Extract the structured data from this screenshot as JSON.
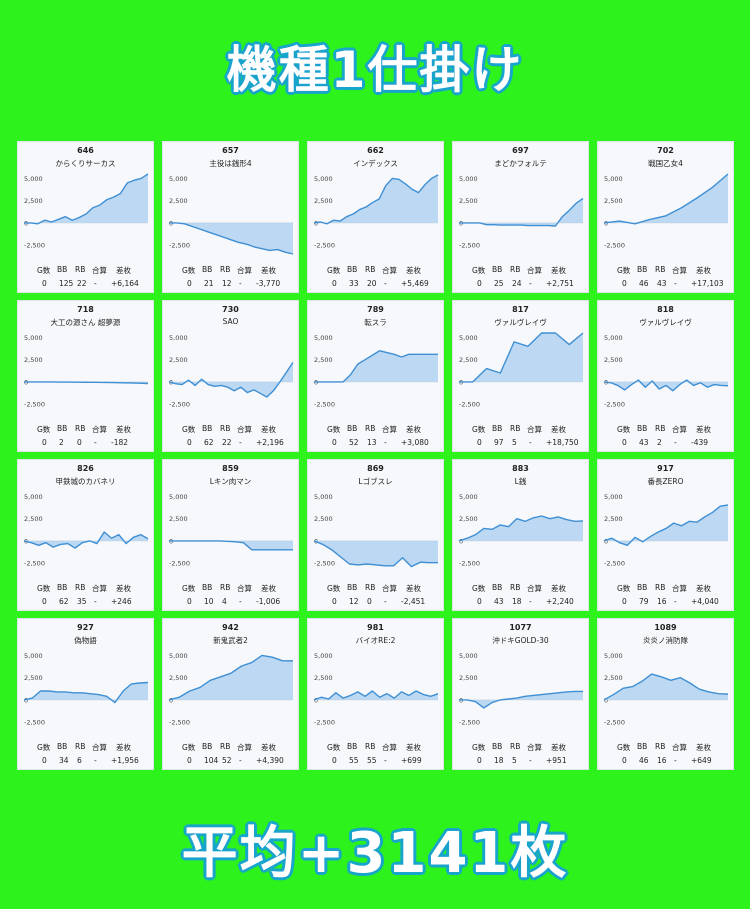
{
  "title": "機種1仕掛け",
  "footer": "平均+3141枚",
  "colors": {
    "background": "#2ef21c",
    "banner_text": "#ffffff",
    "banner_outline": "#17a9c8",
    "line": "#3f8fd4",
    "fill": "#a8cdef"
  },
  "stat_headers": [
    "G数",
    "BB",
    "RB",
    "合算",
    "差枚"
  ],
  "y_ticks": [
    "5,000",
    "2,500",
    "0",
    "-2,500"
  ],
  "chart_data": [
    {
      "type": "area",
      "number": "646",
      "name": "からくりサーカス",
      "ylim": [
        -3500,
        5500
      ],
      "y_ticks": [
        5000,
        2500,
        0,
        -2500
      ],
      "values": [
        0,
        0,
        -100,
        300,
        100,
        400,
        700,
        300,
        600,
        1000,
        1700,
        2000,
        2600,
        2900,
        3300,
        4500,
        4800,
        5000,
        5500
      ],
      "stats": {
        "games": "0",
        "bb": "125",
        "rb": "22",
        "combined": "-",
        "diff": "+6,164"
      }
    },
    {
      "type": "area",
      "number": "657",
      "name": "主役は銭形4",
      "ylim": [
        -3500,
        5500
      ],
      "y_ticks": [
        5000,
        2500,
        0,
        -2500
      ],
      "values": [
        0,
        0,
        -100,
        -400,
        -700,
        -1000,
        -1300,
        -1600,
        -1900,
        -2200,
        -2400,
        -2700,
        -2900,
        -3100,
        -3000,
        -3300,
        -3600
      ],
      "stats": {
        "games": "0",
        "bb": "21",
        "rb": "12",
        "combined": "-",
        "diff": "-3,770"
      }
    },
    {
      "type": "area",
      "number": "662",
      "name": "インデックス",
      "ylim": [
        -3500,
        5500
      ],
      "y_ticks": [
        5000,
        2500,
        0,
        -2500
      ],
      "values": [
        0,
        100,
        -100,
        300,
        200,
        700,
        1000,
        1500,
        1800,
        2300,
        2700,
        4200,
        5000,
        4900,
        4400,
        3800,
        3400,
        4300,
        5000,
        5400
      ],
      "stats": {
        "games": "0",
        "bb": "33",
        "rb": "20",
        "combined": "-",
        "diff": "+5,469"
      }
    },
    {
      "type": "area",
      "number": "697",
      "name": "まどかフォルテ",
      "ylim": [
        -3500,
        5500
      ],
      "y_ticks": [
        5000,
        2500,
        0,
        -2500
      ],
      "values": [
        0,
        0,
        0,
        0,
        -200,
        -200,
        -250,
        -250,
        -250,
        -250,
        -300,
        -300,
        -300,
        -300,
        -350,
        700,
        1400,
        2200,
        2750
      ],
      "stats": {
        "games": "0",
        "bb": "25",
        "rb": "24",
        "combined": "-",
        "diff": "+2,751"
      }
    },
    {
      "type": "area",
      "number": "702",
      "name": "戦国乙女4",
      "ylim": [
        -3500,
        5500
      ],
      "y_ticks": [
        5000,
        2500,
        0,
        -2500
      ],
      "values": [
        0,
        200,
        -100,
        400,
        800,
        1700,
        2800,
        4000,
        5500
      ],
      "stats": {
        "games": "0",
        "bb": "46",
        "rb": "43",
        "combined": "-",
        "diff": "+17,103"
      }
    },
    {
      "type": "area",
      "number": "718",
      "name": "大工の源さん 超夢源",
      "ylim": [
        -3500,
        5500
      ],
      "y_ticks": [
        5000,
        2500,
        0,
        -2500
      ],
      "values": [
        0,
        0,
        0,
        0,
        -20,
        -20,
        -30,
        -40,
        -50,
        -60,
        -80,
        -100,
        -120,
        -150,
        -182
      ],
      "stats": {
        "games": "0",
        "bb": "2",
        "rb": "0",
        "combined": "-",
        "diff": "-182"
      }
    },
    {
      "type": "area",
      "number": "730",
      "name": "SAO",
      "ylim": [
        -3500,
        5500
      ],
      "y_ticks": [
        5000,
        2500,
        0,
        -2500
      ],
      "values": [
        0,
        -200,
        -300,
        200,
        -400,
        300,
        -300,
        -500,
        -400,
        -600,
        -1000,
        -600,
        -1200,
        -900,
        -1300,
        -1700,
        -1000,
        0,
        1100,
        2196
      ],
      "stats": {
        "games": "0",
        "bb": "62",
        "rb": "22",
        "combined": "-",
        "diff": "+2,196"
      }
    },
    {
      "type": "area",
      "number": "789",
      "name": "転スラ",
      "ylim": [
        -3500,
        5500
      ],
      "y_ticks": [
        5000,
        2500,
        0,
        -2500
      ],
      "values": [
        0,
        0,
        0,
        0,
        0,
        800,
        2000,
        2500,
        3000,
        3500,
        3300,
        3100,
        2800,
        3100,
        3100,
        3100,
        3100,
        3100
      ],
      "stats": {
        "games": "0",
        "bb": "52",
        "rb": "13",
        "combined": "-",
        "diff": "+3,080"
      }
    },
    {
      "type": "area",
      "number": "817",
      "name": "ヴァルヴレイヴ",
      "ylim": [
        -3500,
        5500
      ],
      "y_ticks": [
        5000,
        2500,
        0,
        -2500
      ],
      "values": [
        0,
        0,
        1500,
        1000,
        4500,
        4000,
        6000,
        5500,
        4200,
        5500
      ],
      "stats": {
        "games": "0",
        "bb": "97",
        "rb": "5",
        "combined": "-",
        "diff": "+18,750"
      }
    },
    {
      "type": "area",
      "number": "818",
      "name": "ヴァルヴレイヴ",
      "ylim": [
        -3500,
        5500
      ],
      "y_ticks": [
        5000,
        2500,
        0,
        -2500
      ],
      "values": [
        0,
        -100,
        -400,
        -900,
        -300,
        200,
        -600,
        100,
        -800,
        -400,
        -1000,
        -300,
        200,
        -400,
        -100,
        -600,
        -300,
        -400,
        -439
      ],
      "stats": {
        "games": "0",
        "bb": "43",
        "rb": "2",
        "combined": "-",
        "diff": "-439"
      }
    },
    {
      "type": "area",
      "number": "826",
      "name": "甲鉄城のカバネリ",
      "ylim": [
        -3500,
        5500
      ],
      "y_ticks": [
        5000,
        2500,
        0,
        -2500
      ],
      "values": [
        0,
        -200,
        -500,
        -200,
        -700,
        -400,
        -300,
        -800,
        -200,
        0,
        -300,
        1000,
        300,
        700,
        -300,
        400,
        700,
        246
      ],
      "stats": {
        "games": "0",
        "bb": "62",
        "rb": "35",
        "combined": "-",
        "diff": "+246"
      }
    },
    {
      "type": "area",
      "number": "859",
      "name": "Lキン肉マン",
      "ylim": [
        -3500,
        5500
      ],
      "y_ticks": [
        5000,
        2500,
        0,
        -2500
      ],
      "values": [
        0,
        0,
        0,
        0,
        0,
        0,
        0,
        -50,
        -100,
        -200,
        -1000,
        -1006,
        -1006,
        -1006,
        -1006,
        -1006
      ],
      "stats": {
        "games": "0",
        "bb": "10",
        "rb": "4",
        "combined": "-",
        "diff": "-1,006"
      }
    },
    {
      "type": "area",
      "number": "869",
      "name": "Lゴブスレ",
      "ylim": [
        -3500,
        5500
      ],
      "y_ticks": [
        5000,
        2500,
        0,
        -2500
      ],
      "values": [
        0,
        -400,
        -1000,
        -1800,
        -2600,
        -2700,
        -2600,
        -2700,
        -2800,
        -2800,
        -1900,
        -2900,
        -2400,
        -2450,
        -2451
      ],
      "stats": {
        "games": "0",
        "bb": "12",
        "rb": "0",
        "combined": "-",
        "diff": "-2,451"
      }
    },
    {
      "type": "area",
      "number": "883",
      "name": "L銭",
      "ylim": [
        -3500,
        5500
      ],
      "y_ticks": [
        5000,
        2500,
        0,
        -2500
      ],
      "values": [
        0,
        300,
        700,
        1400,
        1300,
        1800,
        1600,
        2500,
        2200,
        2600,
        2800,
        2500,
        2700,
        2400,
        2200,
        2240
      ],
      "stats": {
        "games": "0",
        "bb": "43",
        "rb": "18",
        "combined": "-",
        "diff": "+2,240"
      }
    },
    {
      "type": "area",
      "number": "917",
      "name": "番長ZERO",
      "ylim": [
        -3500,
        5500
      ],
      "y_ticks": [
        5000,
        2500,
        0,
        -2500
      ],
      "values": [
        0,
        300,
        -200,
        -500,
        400,
        -100,
        500,
        1000,
        1400,
        2000,
        1700,
        2200,
        2100,
        2700,
        3200,
        3900,
        4040
      ],
      "stats": {
        "games": "0",
        "bb": "79",
        "rb": "16",
        "combined": "-",
        "diff": "+4,040"
      }
    },
    {
      "type": "area",
      "number": "927",
      "name": "偽物語",
      "ylim": [
        -3500,
        5500
      ],
      "y_ticks": [
        5000,
        2500,
        0,
        -2500
      ],
      "values": [
        0,
        200,
        1000,
        1000,
        900,
        900,
        800,
        800,
        700,
        600,
        400,
        -300,
        1000,
        1800,
        1900,
        1956
      ],
      "stats": {
        "games": "0",
        "bb": "34",
        "rb": "6",
        "combined": "-",
        "diff": "+1,956"
      }
    },
    {
      "type": "area",
      "number": "942",
      "name": "新鬼武者2",
      "ylim": [
        -3500,
        5500
      ],
      "y_ticks": [
        5000,
        2500,
        0,
        -2500
      ],
      "values": [
        0,
        300,
        1000,
        1400,
        2200,
        2600,
        3000,
        3800,
        4200,
        5000,
        4800,
        4400,
        4390
      ],
      "stats": {
        "games": "0",
        "bb": "104",
        "rb": "52",
        "combined": "-",
        "diff": "+4,390"
      }
    },
    {
      "type": "area",
      "number": "981",
      "name": "バイオRE:2",
      "ylim": [
        -3500,
        5500
      ],
      "y_ticks": [
        5000,
        2500,
        0,
        -2500
      ],
      "values": [
        0,
        300,
        100,
        800,
        200,
        500,
        900,
        400,
        1000,
        300,
        700,
        200,
        900,
        500,
        1000,
        600,
        400,
        699
      ],
      "stats": {
        "games": "0",
        "bb": "55",
        "rb": "55",
        "combined": "-",
        "diff": "+699"
      }
    },
    {
      "type": "area",
      "number": "1077",
      "name": "沖ドキGOLD-30",
      "ylim": [
        -3500,
        5500
      ],
      "y_ticks": [
        5000,
        2500,
        0,
        -2500
      ],
      "values": [
        0,
        0,
        -200,
        -900,
        -300,
        0,
        100,
        200,
        400,
        500,
        600,
        700,
        800,
        900,
        951,
        951
      ],
      "stats": {
        "games": "0",
        "bb": "18",
        "rb": "5",
        "combined": "-",
        "diff": "+951"
      }
    },
    {
      "type": "area",
      "number": "1089",
      "name": "炎炎ノ消防隊",
      "ylim": [
        -3500,
        5500
      ],
      "y_ticks": [
        5000,
        2500,
        0,
        -2500
      ],
      "values": [
        0,
        600,
        1300,
        1500,
        2100,
        2900,
        2600,
        2200,
        2500,
        1900,
        1200,
        900,
        700,
        649
      ],
      "stats": {
        "games": "0",
        "bb": "46",
        "rb": "16",
        "combined": "-",
        "diff": "+649"
      }
    }
  ]
}
